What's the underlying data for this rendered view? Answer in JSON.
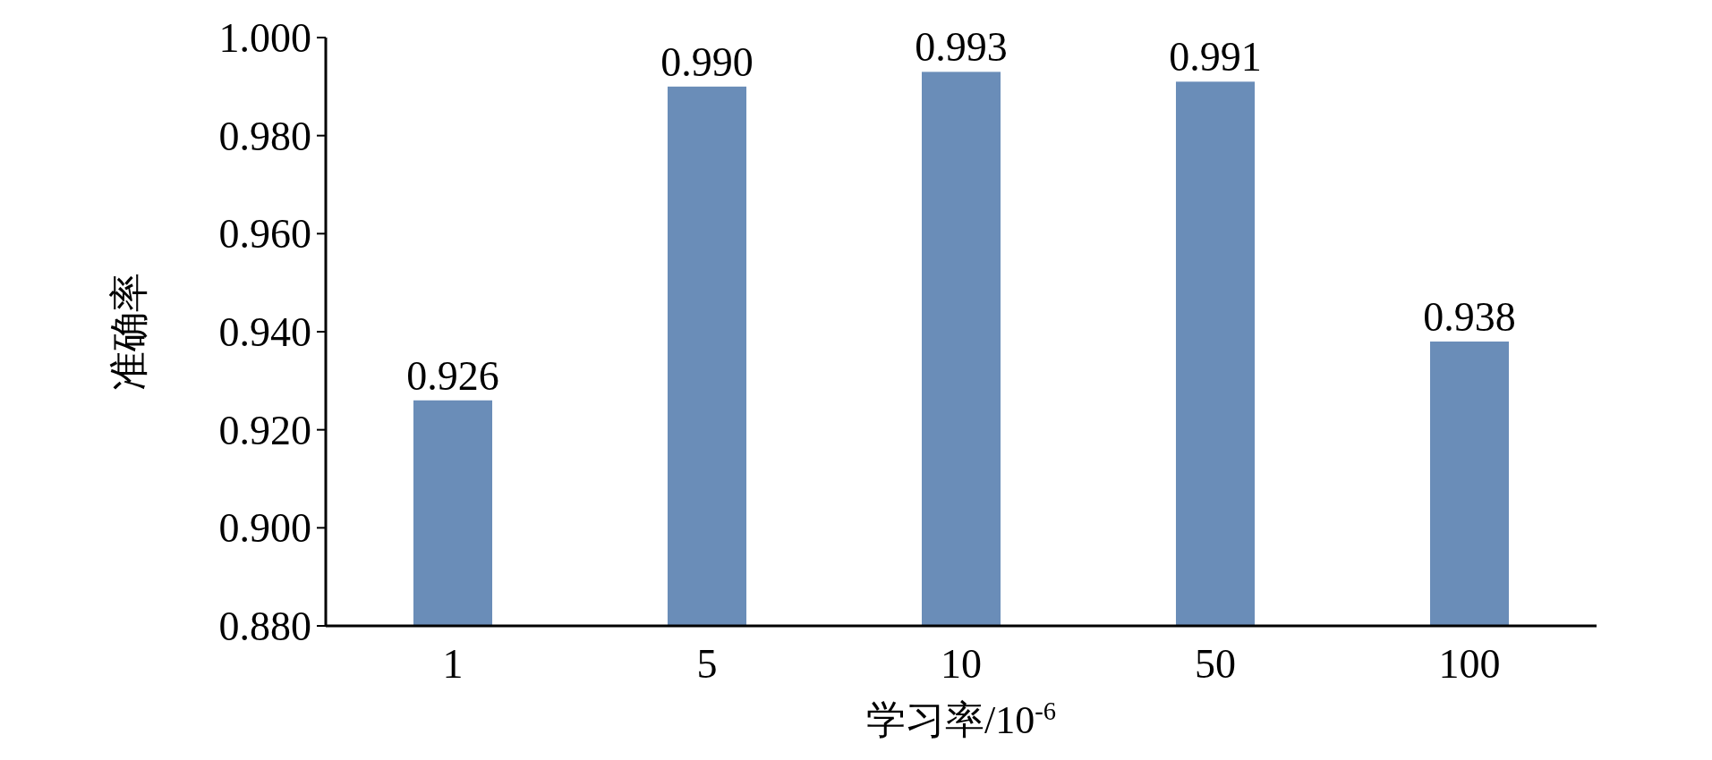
{
  "chart_data": {
    "type": "bar",
    "xlabel": "学习率/10$^{-6}$",
    "ylabel": "准确率",
    "categories": [
      "1",
      "5",
      "10",
      "50",
      "100"
    ],
    "values": [
      0.926,
      0.99,
      0.993,
      0.991,
      0.938
    ],
    "color": "#6a8db8",
    "ylim": [
      0.88,
      1.0
    ],
    "yticks": [
      {
        "value": 0.88,
        "label": "0.880"
      },
      {
        "value": 0.9,
        "label": "0.900"
      },
      {
        "value": 0.92,
        "label": "0.920"
      },
      {
        "value": 0.94,
        "label": "0.940"
      },
      {
        "value": 0.96,
        "label": "0.960"
      },
      {
        "value": 0.98,
        "label": "0.980"
      },
      {
        "value": 1.0,
        "label": "1.000"
      }
    ],
    "value_labels": [
      "0.926",
      "0.990",
      "0.993",
      "0.991",
      "0.938"
    ],
    "grid": false
  }
}
